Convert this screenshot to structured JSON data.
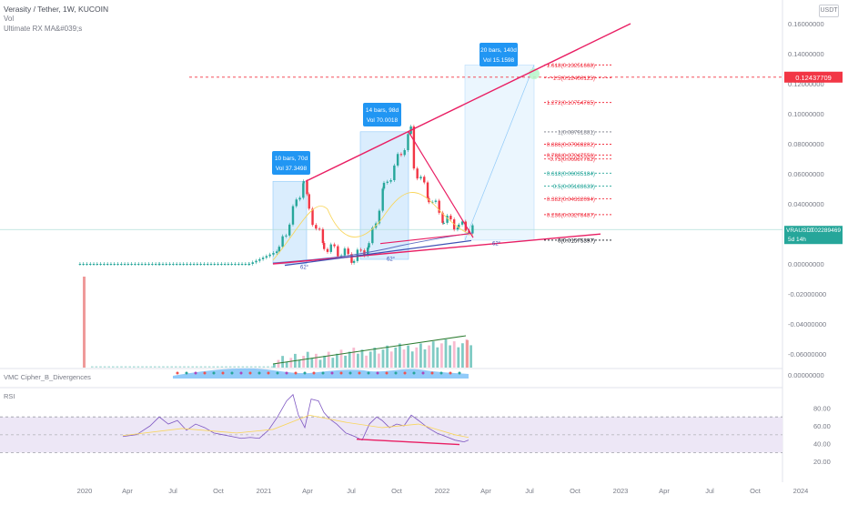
{
  "header": {
    "title": "Verasity / Tether, 1W, KUCOIN",
    "vol_label": "Vol",
    "ma_label": "Ultimate RX MA&#039;s",
    "currency": "USDT"
  },
  "price_axis": {
    "ticks": [
      "0.16000000",
      "0.14000000",
      "0.12000000",
      "0.10000000",
      "0.08000000",
      "0.06000000",
      "0.04000000",
      "0.02000000",
      "0.00000000",
      "-0.02000000",
      "-0.04000000",
      "-0.06000000",
      "0.00000000"
    ],
    "tick_values": [
      0.16,
      0.14,
      0.12,
      0.1,
      0.08,
      0.06,
      0.04,
      0.02,
      0.0,
      -0.02,
      -0.04,
      -0.06
    ],
    "target_label": "0.12437709",
    "current_label": "VRAUSDT",
    "current_value": "0.02289469",
    "current_time": "5d 14h",
    "accent_red": "#f23645",
    "accent_teal": "#26a69a"
  },
  "time_axis": {
    "ticks": [
      "2020",
      "Apr",
      "Jul",
      "Oct",
      "2021",
      "Apr",
      "Jul",
      "Oct",
      "2022",
      "Apr",
      "Jul",
      "Oct",
      "2023",
      "Apr",
      "Jul",
      "Oct",
      "2024"
    ]
  },
  "fib_levels": [
    {
      "label": "1.618(0.13251668)",
      "value": 0.1325,
      "color": "#f23645"
    },
    {
      "label": "1.5(0.12400123)",
      "value": 0.124,
      "color": "#f23645"
    },
    {
      "label": "1.272(0.10754765)",
      "value": 0.1075,
      "color": "#f23645"
    },
    {
      "label": "1(0.08791881)",
      "value": 0.0879,
      "color": "#787b86"
    },
    {
      "label": "0.886(0.07969202)",
      "value": 0.0797,
      "color": "#f23645"
    },
    {
      "label": "0.786(0.07247556)",
      "value": 0.0725,
      "color": "#f23645"
    },
    {
      "label": "0.75(0.06987762)",
      "value": 0.0699,
      "color": "#f23645"
    },
    {
      "label": "0.618(0.06035184)",
      "value": 0.0604,
      "color": "#26a69a"
    },
    {
      "label": "0.5(0.05183639)",
      "value": 0.0518,
      "color": "#26a69a"
    },
    {
      "label": "0.382(0.04332094)",
      "value": 0.0433,
      "color": "#f23645"
    },
    {
      "label": "0.236(0.03278487)",
      "value": 0.0328,
      "color": "#f23645"
    },
    {
      "label": "0(0.01575397)",
      "value": 0.0158,
      "color": "#131722"
    }
  ],
  "annotations": [
    {
      "line1": "10 bars, 70d",
      "line2": "Vol 37.3498"
    },
    {
      "line1": "14 bars, 98d",
      "line2": "Vol 70.0018"
    },
    {
      "line1": "20 bars, 140d",
      "line2": "Vol 15.1598"
    }
  ],
  "angle_labels": [
    "62°",
    "62°",
    "62°"
  ],
  "panes": {
    "cipher": {
      "label": "VMC Cipher_B_Divergences",
      "axis": "0.00000000"
    },
    "rsi": {
      "label": "RSI",
      "ticks": [
        "80.00",
        "60.00",
        "40.00",
        "20.00"
      ],
      "tick_values": [
        80,
        60,
        40,
        20
      ]
    }
  },
  "chart_data": {
    "type": "candlestick",
    "title": "Verasity / Tether, 1W, KUCOIN",
    "y_unit": "USDT",
    "ylim": [
      -0.07,
      0.165
    ],
    "xlim": [
      "2019-12",
      "2024-01"
    ],
    "x_ticks": [
      "2020",
      "Apr",
      "Jul",
      "Oct",
      "2021",
      "Apr",
      "Jul",
      "Oct",
      "2022",
      "Apr",
      "Jul",
      "Oct",
      "2023",
      "Apr",
      "Jul",
      "Oct",
      "2024"
    ],
    "closes_approx": [
      {
        "x": "2019-12",
        "y": 0.0
      },
      {
        "x": "2020-06",
        "y": 0.0
      },
      {
        "x": "2020-12",
        "y": 0.0
      },
      {
        "x": "2021-02",
        "y": 0.009
      },
      {
        "x": "2021-03-20",
        "y": 0.055
      },
      {
        "x": "2021-04",
        "y": 0.035
      },
      {
        "x": "2021-05",
        "y": 0.012
      },
      {
        "x": "2021-07",
        "y": 0.004
      },
      {
        "x": "2021-08",
        "y": 0.012
      },
      {
        "x": "2021-09",
        "y": 0.05
      },
      {
        "x": "2021-10-25",
        "y": 0.088
      },
      {
        "x": "2021-11",
        "y": 0.065
      },
      {
        "x": "2021-12",
        "y": 0.045
      },
      {
        "x": "2022-01",
        "y": 0.03
      },
      {
        "x": "2022-02",
        "y": 0.025
      },
      {
        "x": "2022-03",
        "y": 0.0229
      }
    ],
    "current_price": 0.02289469,
    "target_price": 0.12437709,
    "rsi_ylim": [
      15,
      95
    ],
    "grid": false
  }
}
